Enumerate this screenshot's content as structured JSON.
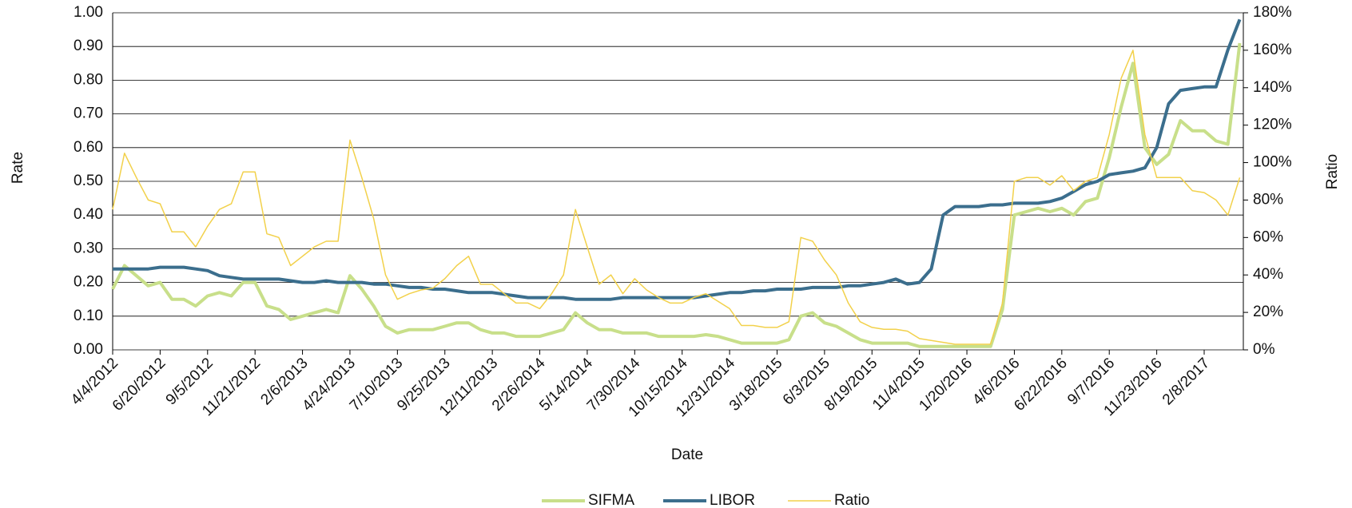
{
  "chart_data": {
    "type": "line",
    "x_label": "Date",
    "y_label": "Rate",
    "y2_label": "Ratio",
    "categories": [
      "4/4/2012",
      null,
      null,
      null,
      "6/20/2012",
      null,
      null,
      null,
      "9/5/2012",
      null,
      null,
      null,
      "11/21/2012",
      null,
      null,
      null,
      "2/6/2013",
      null,
      null,
      null,
      "4/24/2013",
      null,
      null,
      null,
      "7/10/2013",
      null,
      null,
      null,
      "9/25/2013",
      null,
      null,
      null,
      "12/11/2013",
      null,
      null,
      null,
      "2/26/2014",
      null,
      null,
      null,
      "5/14/2014",
      null,
      null,
      null,
      "7/30/2014",
      null,
      null,
      null,
      "10/15/2014",
      null,
      null,
      null,
      "12/31/2014",
      null,
      null,
      null,
      "3/18/2015",
      null,
      null,
      null,
      "6/3/2015",
      null,
      null,
      null,
      "8/19/2015",
      null,
      null,
      null,
      "11/4/2015",
      null,
      null,
      null,
      "1/20/2016",
      null,
      null,
      null,
      "4/6/2016",
      null,
      null,
      null,
      "6/22/2016",
      null,
      null,
      null,
      "9/7/2016",
      null,
      null,
      null,
      "11/23/2016",
      null,
      null,
      null,
      "2/8/2017",
      null,
      null,
      null
    ],
    "series": [
      {
        "name": "SIFMA",
        "color": "#c8df8a",
        "width": 4,
        "values": [
          0.18,
          0.25,
          0.22,
          0.19,
          0.2,
          0.15,
          0.15,
          0.13,
          0.16,
          0.17,
          0.16,
          0.2,
          0.2,
          0.13,
          0.12,
          0.09,
          0.1,
          0.11,
          0.12,
          0.11,
          0.22,
          0.18,
          0.13,
          0.07,
          0.05,
          0.06,
          0.06,
          0.06,
          0.07,
          0.08,
          0.08,
          0.06,
          0.05,
          0.05,
          0.04,
          0.04,
          0.04,
          0.05,
          0.06,
          0.11,
          0.08,
          0.06,
          0.06,
          0.05,
          0.05,
          0.05,
          0.04,
          0.04,
          0.04,
          0.04,
          0.045,
          0.04,
          0.03,
          0.02,
          0.02,
          0.02,
          0.02,
          0.03,
          0.1,
          0.11,
          0.08,
          0.07,
          0.05,
          0.03,
          0.02,
          0.02,
          0.02,
          0.02,
          0.01,
          0.01,
          0.01,
          0.01,
          0.01,
          0.01,
          0.01,
          0.12,
          0.4,
          0.41,
          0.42,
          0.41,
          0.42,
          0.4,
          0.44,
          0.45,
          0.57,
          0.72,
          0.85,
          0.6,
          0.55,
          0.58,
          0.68,
          0.65,
          0.65,
          0.62,
          0.61,
          0.91
        ]
      },
      {
        "name": "LIBOR",
        "color": "#3b6e8d",
        "width": 4,
        "values": [
          0.24,
          0.24,
          0.24,
          0.24,
          0.245,
          0.245,
          0.245,
          0.24,
          0.235,
          0.22,
          0.215,
          0.21,
          0.21,
          0.21,
          0.21,
          0.205,
          0.2,
          0.2,
          0.205,
          0.2,
          0.2,
          0.2,
          0.195,
          0.195,
          0.19,
          0.185,
          0.185,
          0.18,
          0.18,
          0.175,
          0.17,
          0.17,
          0.17,
          0.165,
          0.16,
          0.155,
          0.155,
          0.155,
          0.155,
          0.15,
          0.15,
          0.15,
          0.15,
          0.155,
          0.155,
          0.155,
          0.155,
          0.155,
          0.155,
          0.155,
          0.16,
          0.165,
          0.17,
          0.17,
          0.175,
          0.175,
          0.18,
          0.18,
          0.18,
          0.185,
          0.185,
          0.185,
          0.19,
          0.19,
          0.195,
          0.2,
          0.21,
          0.195,
          0.2,
          0.24,
          0.4,
          0.425,
          0.425,
          0.425,
          0.43,
          0.43,
          0.435,
          0.435,
          0.435,
          0.44,
          0.45,
          0.47,
          0.49,
          0.5,
          0.52,
          0.525,
          0.53,
          0.54,
          0.6,
          0.73,
          0.77,
          0.775,
          0.78,
          0.78,
          0.89,
          0.98
        ]
      },
      {
        "name": "Ratio",
        "color": "#f2d14b",
        "width": 1.5,
        "axis": "y2",
        "values": [
          75,
          105,
          92,
          80,
          78,
          63,
          63,
          55,
          66,
          75,
          78,
          95,
          95,
          62,
          60,
          45,
          50,
          55,
          58,
          58,
          112,
          92,
          70,
          40,
          27,
          30,
          32,
          33,
          38,
          45,
          50,
          35,
          35,
          30,
          25,
          25,
          22,
          30,
          40,
          75,
          55,
          35,
          40,
          30,
          38,
          32,
          28,
          25,
          25,
          28,
          30,
          26,
          22,
          13,
          13,
          12,
          12,
          15,
          60,
          58,
          48,
          40,
          25,
          15,
          12,
          11,
          11,
          10,
          6,
          5,
          4,
          3,
          3,
          3,
          3,
          25,
          90,
          92,
          92,
          88,
          93,
          85,
          90,
          92,
          115,
          145,
          160,
          115,
          92,
          92,
          92,
          85,
          84,
          80,
          72,
          92
        ]
      }
    ],
    "ylim": [
      0,
      1
    ],
    "yticks": [
      {
        "value": 0,
        "label": "0.00"
      },
      {
        "value": 0.1,
        "label": "0.10"
      },
      {
        "value": 0.2,
        "label": "0.20"
      },
      {
        "value": 0.3,
        "label": "0.30"
      },
      {
        "value": 0.4,
        "label": "0.40"
      },
      {
        "value": 0.5,
        "label": "0.50"
      },
      {
        "value": 0.6,
        "label": "0.60"
      },
      {
        "value": 0.7,
        "label": "0.70"
      },
      {
        "value": 0.8,
        "label": "0.80"
      },
      {
        "value": 0.9,
        "label": "0.90"
      },
      {
        "value": 1,
        "label": "1.00"
      }
    ],
    "y2lim": [
      0,
      180
    ],
    "y2ticks": [
      {
        "value": 0,
        "label": "0%"
      },
      {
        "value": 20,
        "label": "20%"
      },
      {
        "value": 40,
        "label": "40%"
      },
      {
        "value": 60,
        "label": "60%"
      },
      {
        "value": 80,
        "label": "80%"
      },
      {
        "value": 100,
        "label": "100%"
      },
      {
        "value": 120,
        "label": "120%"
      },
      {
        "value": 140,
        "label": "140%"
      },
      {
        "value": 160,
        "label": "160%"
      },
      {
        "value": 180,
        "label": "180%"
      }
    ],
    "grid": true,
    "legend": "bottom"
  }
}
